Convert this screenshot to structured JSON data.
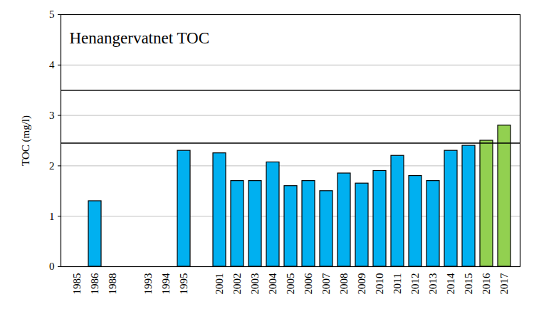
{
  "chart_data": {
    "type": "bar",
    "title": "Henangervatnet TOC",
    "y_label": "TOC (mg/l)",
    "categories": [
      "1985",
      "1986",
      "1988",
      null,
      "1993",
      "1994",
      "1995",
      null,
      "2001",
      "2002",
      "2003",
      "2004",
      "2005",
      "2006",
      "2007",
      "2008",
      "2009",
      "2010",
      "2011",
      "2012",
      "2013",
      "2014",
      "2015",
      "2016",
      "2017"
    ],
    "values": [
      null,
      1.3,
      null,
      null,
      null,
      null,
      2.3,
      null,
      2.25,
      1.7,
      1.7,
      2.07,
      1.6,
      1.7,
      1.5,
      1.85,
      1.65,
      1.9,
      2.2,
      1.8,
      1.7,
      2.3,
      2.4,
      2.5,
      2.8
    ],
    "colors": [
      "#00b0f0",
      "#00b0f0",
      "#00b0f0",
      "#00b0f0",
      "#00b0f0",
      "#00b0f0",
      "#00b0f0",
      "#00b0f0",
      "#00b0f0",
      "#00b0f0",
      "#00b0f0",
      "#00b0f0",
      "#00b0f0",
      "#00b0f0",
      "#00b0f0",
      "#00b0f0",
      "#00b0f0",
      "#00b0f0",
      "#00b0f0",
      "#00b0f0",
      "#00b0f0",
      "#00b0f0",
      "#00b0f0",
      "#92d050",
      "#92d050"
    ],
    "ylim": [
      0,
      5
    ],
    "yticks": [
      0,
      1,
      2,
      3,
      4,
      5
    ],
    "grid": true,
    "reference_lines": [
      2.45,
      3.5
    ]
  }
}
